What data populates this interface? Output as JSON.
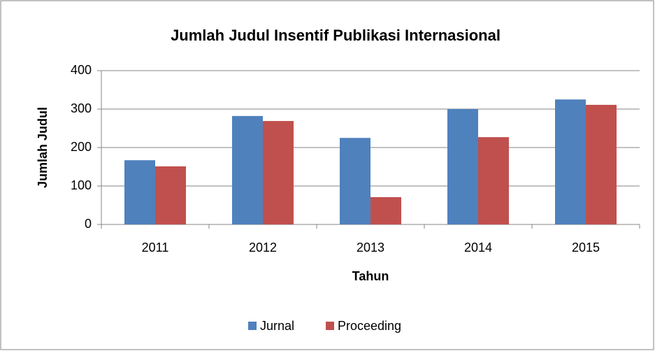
{
  "chart_data": {
    "type": "bar",
    "title": "Jumlah Judul Insentif Publikasi Internasional",
    "x_label": "Tahun",
    "y_label": "Jumlah Judul",
    "categories": [
      "2011",
      "2012",
      "2013",
      "2014",
      "2015"
    ],
    "series": [
      {
        "name": "Jurnal",
        "color": "#4f81bd",
        "values": [
          167,
          282,
          225,
          300,
          325
        ]
      },
      {
        "name": "Proceeding",
        "color": "#c0504d",
        "values": [
          151,
          269,
          71,
          227,
          311
        ]
      }
    ],
    "ylim": [
      0,
      400
    ],
    "yticks": [
      0,
      100,
      200,
      300,
      400
    ],
    "grid": true,
    "legend": "bottom"
  }
}
